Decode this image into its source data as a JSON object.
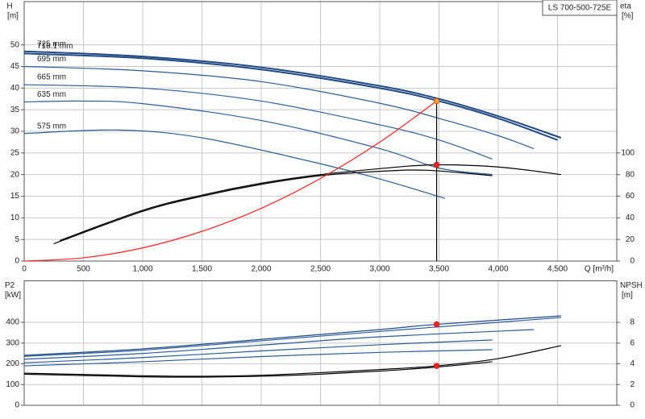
{
  "chart_data": [
    {
      "type": "line",
      "title": "LS 700-500-725E",
      "x_label": "Q [m³/h]",
      "y_label": "H",
      "y_unit": "[m]",
      "y2_label": "eta",
      "y2_unit": "[%]",
      "xlim": [
        0,
        5000
      ],
      "ylim": [
        0,
        60
      ],
      "y2lim": [
        0,
        240
      ],
      "grid": true,
      "xticks": [
        0,
        500,
        {
          "value": 1000,
          "label": "1,000"
        },
        {
          "value": 1500,
          "label": "1,500"
        },
        {
          "value": 2000,
          "label": "2,000"
        },
        {
          "value": 2500,
          "label": "2,500"
        },
        {
          "value": 3000,
          "label": "3,000"
        },
        {
          "value": 3500,
          "label": "3,500"
        },
        {
          "value": 4000,
          "label": "4,000"
        },
        {
          "value": 4500,
          "label": "4,500"
        }
      ],
      "yticks": [
        0,
        5,
        10,
        15,
        20,
        25,
        30,
        35,
        40,
        45,
        50
      ],
      "y2ticks": [
        0,
        20,
        40,
        60,
        80,
        100
      ],
      "series": [
        {
          "name": "725 mm",
          "color": "#1f4a85",
          "x": [
            0,
            1000,
            2000,
            3000,
            3500,
            4000,
            4530
          ],
          "values": [
            48.5,
            47.3,
            44.8,
            40.5,
            37.5,
            33.5,
            28.5
          ]
        },
        {
          "name": "718.1 mm",
          "color": "#1f4a85",
          "x": [
            0,
            1000,
            2000,
            3000,
            3500,
            4000,
            4500
          ],
          "values": [
            48,
            46.9,
            44.3,
            40,
            37,
            33,
            28
          ]
        },
        {
          "name": "695 mm",
          "color": "#2a5c99",
          "x": [
            0,
            1000,
            2000,
            3000,
            3500,
            4000,
            4300
          ],
          "values": [
            45,
            44,
            41.5,
            36.5,
            33,
            29,
            26
          ]
        },
        {
          "name": "665 mm",
          "color": "#2a5c99",
          "x": [
            0,
            1000,
            2000,
            3000,
            3500,
            3950
          ],
          "values": [
            40.8,
            40,
            37,
            31.5,
            28,
            23.6
          ]
        },
        {
          "name": "635 mm",
          "color": "#2a5c99",
          "x": [
            0,
            500,
            1000,
            2000,
            3000,
            3500,
            3950
          ],
          "values": [
            36.8,
            37,
            36.4,
            32.5,
            26,
            21.5,
            20
          ]
        },
        {
          "name": "575 mm",
          "color": "#2a5c99",
          "x": [
            0,
            800,
            1500,
            2500,
            3000,
            3550
          ],
          "values": [
            29.5,
            30.3,
            28.5,
            22.5,
            19,
            14.5
          ]
        },
        {
          "color": "#000000",
          "axis": "y2",
          "x": [
            300,
            1000,
            1500,
            2000,
            2500,
            3000,
            3450,
            4000,
            4530
          ],
          "values": [
            19,
            47,
            61,
            72,
            80,
            85.5,
            89,
            87,
            80
          ]
        },
        {
          "color": "#000000",
          "axis": "y2",
          "x": [
            250,
            1000,
            1500,
            2000,
            2500,
            3000,
            3400,
            3950
          ],
          "values": [
            16,
            46,
            60,
            71,
            79,
            83,
            84,
            79
          ]
        },
        {
          "color": "#ff2020",
          "x": [
            0,
            500,
            1000,
            1500,
            2000,
            2500,
            3000,
            3480
          ],
          "values": [
            0,
            0.76,
            3.05,
            6.87,
            12.2,
            19.1,
            27.5,
            37
          ]
        }
      ],
      "points": [
        {
          "color": "#f0a020",
          "x": 3480,
          "value": 37
        },
        {
          "color": "#ff2020",
          "axis": "y2",
          "x": 3480,
          "value": 89
        }
      ]
    },
    {
      "type": "line",
      "y_label": "P2",
      "y_unit": "[kW]",
      "y2_label": "NPSH",
      "y2_unit": "[m]",
      "xlim": [
        0,
        5000
      ],
      "ylim": [
        0,
        600
      ],
      "y2lim": [
        0,
        12
      ],
      "grid": true,
      "xticks": [
        0,
        500,
        1000,
        1500,
        2000,
        2500,
        3000,
        3500,
        4000,
        4500
      ],
      "yticks": [
        0,
        100,
        200,
        300,
        400
      ],
      "y2ticks": [
        0,
        2,
        4,
        6,
        8
      ],
      "series": [
        {
          "color": "#1f4a85",
          "x": [
            0,
            1000,
            2000,
            3000,
            3480,
            4530
          ],
          "values": [
            241,
            272,
            318,
            365,
            390,
            431
          ]
        },
        {
          "color": "#2a5c99",
          "x": [
            0,
            1000,
            2000,
            3000,
            4000,
            4530
          ],
          "values": [
            236,
            266,
            311,
            356,
            400,
            423
          ]
        },
        {
          "color": "#2a5c99",
          "x": [
            0,
            1000,
            2000,
            3000,
            4300
          ],
          "values": [
            222,
            250,
            290,
            330,
            365
          ]
        },
        {
          "color": "#2a5c99",
          "x": [
            0,
            1000,
            2000,
            3000,
            3950
          ],
          "values": [
            205,
            230,
            262,
            292,
            315
          ]
        },
        {
          "color": "#2a5c99",
          "x": [
            0,
            1000,
            2000,
            3000,
            3950
          ],
          "values": [
            190,
            210,
            235,
            255,
            268
          ]
        },
        {
          "color": "#000000",
          "axis": "y2",
          "x": [
            0,
            1000,
            1500,
            2000,
            2500,
            3000,
            3480,
            4000,
            4530
          ],
          "values": [
            3.1,
            2.85,
            2.8,
            2.9,
            3.15,
            3.45,
            3.8,
            4.5,
            5.75
          ]
        },
        {
          "color": "#000000",
          "axis": "y2",
          "x": [
            0,
            1000,
            1500,
            2000,
            2500,
            3000,
            3500,
            3950
          ],
          "values": [
            3.0,
            2.75,
            2.72,
            2.8,
            3.0,
            3.3,
            3.7,
            4.2
          ]
        }
      ],
      "points": [
        {
          "color": "#ff2020",
          "x": 3480,
          "value": 390
        },
        {
          "color": "#ff2020",
          "axis": "y2",
          "x": 3480,
          "value": 3.8
        }
      ]
    }
  ]
}
